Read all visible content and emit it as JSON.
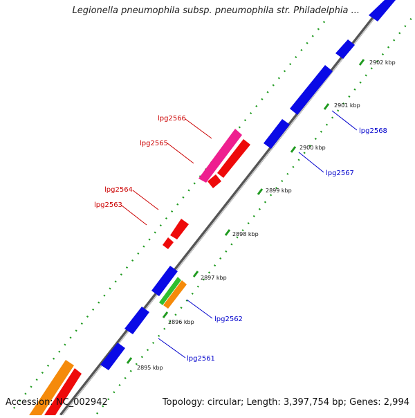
{
  "title": "Legionella pneumophila subsp. pneumophila str. Philadelphia ...",
  "footer": {
    "accession": "Accession: NC_002942",
    "summary": "Topology: circular; Length: 3,397,754 bp; Genes: 2,994"
  },
  "colors": {
    "backbone": "#8a8a8a",
    "ticks": "#1f9a1f",
    "forward_label": "#cc0000",
    "reverse_label": "#0000cc",
    "gene_blue": "#0a0ae6",
    "gene_red": "#ee0a0a",
    "gene_magenta": "#ee1f8f",
    "gene_orange": "#f58a0a",
    "gene_green": "#2fbf2f"
  },
  "kbp_labels": [
    "2895 kbp",
    "2896 kbp",
    "2897 kbp",
    "2898 kbp",
    "2899 kbp",
    "2900 kbp",
    "2901 kbp",
    "2902 kbp"
  ],
  "forward_gene_labels": [
    "lpg2566",
    "lpg2565",
    "lpg2564",
    "lpg2563"
  ],
  "reverse_gene_labels": [
    "lpg2568",
    "lpg2567",
    "lpg2562",
    "lpg2561"
  ]
}
